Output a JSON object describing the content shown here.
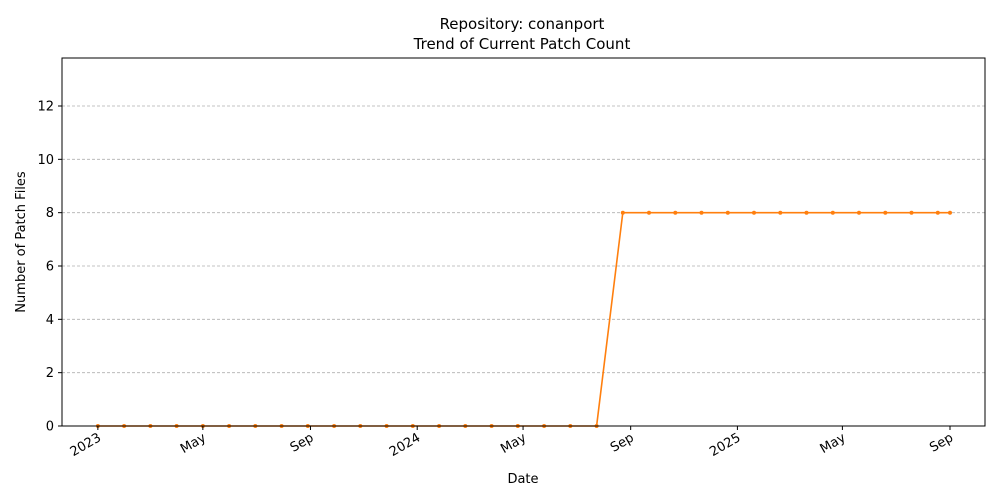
{
  "chart_data": {
    "type": "line",
    "title": "Repository: conanport",
    "subtitle": "Trend of Current Patch Count",
    "xlabel": "Date",
    "ylabel": "Number of Patch Files",
    "ylim": [
      0,
      13.8
    ],
    "yticks": [
      0,
      2,
      4,
      6,
      8,
      10,
      12
    ],
    "xlim": [
      "2022-11-21",
      "2025-10-11"
    ],
    "xticks": [
      {
        "date": "2023-01-01",
        "label": "2023"
      },
      {
        "date": "2023-05-01",
        "label": "May"
      },
      {
        "date": "2023-09-01",
        "label": "Sep"
      },
      {
        "date": "2024-01-01",
        "label": "2024"
      },
      {
        "date": "2024-05-01",
        "label": "May"
      },
      {
        "date": "2024-09-01",
        "label": "Sep"
      },
      {
        "date": "2025-01-01",
        "label": "2025"
      },
      {
        "date": "2025-05-01",
        "label": "May"
      },
      {
        "date": "2025-09-01",
        "label": "Sep"
      }
    ],
    "grid": "y-dashed",
    "color": "#ff7f0e",
    "series": [
      {
        "x": [
          "2023-01-01",
          "2023-01-31",
          "2023-03-02",
          "2023-04-01",
          "2023-05-01",
          "2023-05-31",
          "2023-06-30",
          "2023-07-30",
          "2023-08-29",
          "2023-09-28",
          "2023-10-28",
          "2023-11-27",
          "2023-12-27",
          "2024-01-26",
          "2024-02-25",
          "2024-03-26",
          "2024-04-25",
          "2024-05-25",
          "2024-06-24",
          "2024-07-24",
          "2024-08-23",
          "2024-09-22",
          "2024-10-22",
          "2024-11-21",
          "2024-12-21",
          "2025-01-20",
          "2025-02-19",
          "2025-03-21",
          "2025-04-20",
          "2025-05-20",
          "2025-06-19",
          "2025-07-19",
          "2025-08-18",
          "2025-09-01"
        ],
        "y": [
          0,
          0,
          0,
          0,
          0,
          0,
          0,
          0,
          0,
          0,
          0,
          0,
          0,
          0,
          0,
          0,
          0,
          0,
          0,
          0,
          8,
          8,
          8,
          8,
          8,
          8,
          8,
          8,
          8,
          8,
          8,
          8,
          8,
          8
        ]
      }
    ]
  }
}
